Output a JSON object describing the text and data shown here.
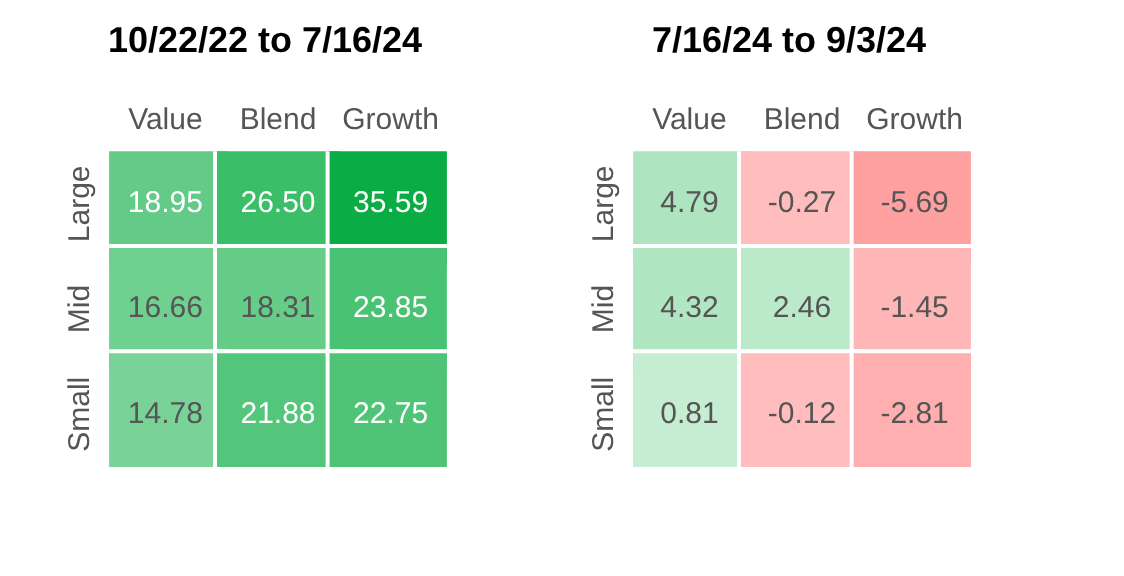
{
  "chart_data": [
    {
      "type": "heatmap",
      "title": "10/22/22 to 7/16/24",
      "categories": [
        "Value",
        "Blend",
        "Growth"
      ],
      "y_categories": [
        "Large",
        "Mid",
        "Small"
      ],
      "cells": [
        [
          18.95,
          26.5,
          35.59
        ],
        [
          16.66,
          18.31,
          23.85
        ],
        [
          14.78,
          21.88,
          22.75
        ]
      ],
      "cell_labels": [
        [
          "18.95",
          "26.50",
          "35.59"
        ],
        [
          "16.66",
          "18.31",
          "23.85"
        ],
        [
          "14.78",
          "21.88",
          "22.75"
        ]
      ]
    },
    {
      "type": "heatmap",
      "title": "7/16/24 to 9/3/24",
      "categories": [
        "Value",
        "Blend",
        "Growth"
      ],
      "y_categories": [
        "Large",
        "Mid",
        "Small"
      ],
      "cells": [
        [
          4.79,
          -0.27,
          -5.69
        ],
        [
          4.32,
          2.46,
          -1.45
        ],
        [
          0.81,
          -0.12,
          -2.81
        ]
      ],
      "cell_labels": [
        [
          "4.79",
          "-0.27",
          "-5.69"
        ],
        [
          "4.32",
          "2.46",
          "-1.45"
        ],
        [
          "0.81",
          "-0.12",
          "-2.81"
        ]
      ]
    }
  ]
}
